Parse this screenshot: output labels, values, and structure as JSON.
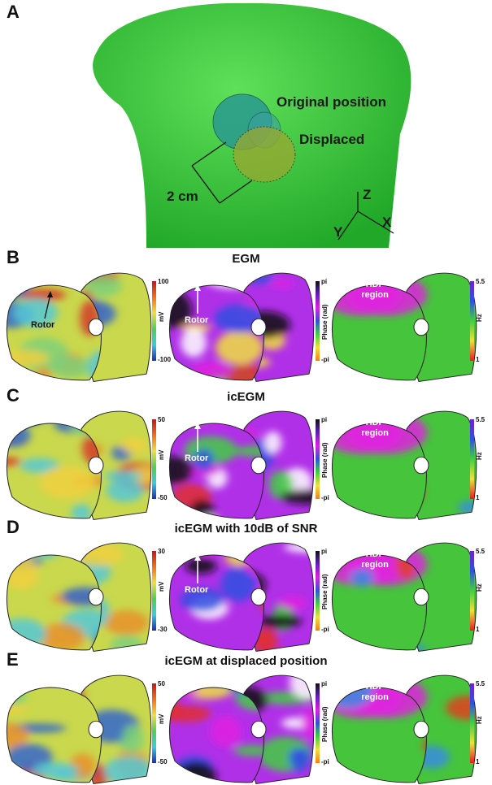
{
  "panel_a": {
    "label": "A",
    "annotations": {
      "original": "Original position",
      "displaced": "Displaced",
      "distance": "2 cm"
    },
    "axes": {
      "z": "Z",
      "x": "X",
      "y": "Y"
    }
  },
  "rows": [
    {
      "label": "B",
      "title": "EGM",
      "voltage_bar": {
        "unit": "mV",
        "max": "100",
        "min": "-100"
      },
      "phase_bar": {
        "unit": "Phase (rad)",
        "max": "pi",
        "min": "-pi"
      },
      "freq_bar": {
        "unit": "Hz",
        "max": "5.5",
        "min": "1"
      },
      "annotations": {
        "rotor_voltage": "Rotor",
        "rotor_phase": "Rotor",
        "hdf": "HDF region"
      }
    },
    {
      "label": "C",
      "title": "icEGM",
      "voltage_bar": {
        "unit": "mV",
        "max": "50",
        "min": "-50"
      },
      "phase_bar": {
        "unit": "Phase (rad)",
        "max": "pi",
        "min": "-pi"
      },
      "freq_bar": {
        "unit": "Hz",
        "max": "5.5",
        "min": "1"
      },
      "annotations": {
        "rotor_phase": "Rotor",
        "hdf": "HDF region"
      }
    },
    {
      "label": "D",
      "title": "icEGM with 10dB of SNR",
      "voltage_bar": {
        "unit": "mV",
        "max": "30",
        "min": "-30"
      },
      "phase_bar": {
        "unit": "Phase (rad)",
        "max": "pi",
        "min": "-pi"
      },
      "freq_bar": {
        "unit": "Hz",
        "max": "5.5",
        "min": "1"
      },
      "annotations": {
        "rotor_phase": "Rotor",
        "hdf": "HDF region"
      }
    },
    {
      "label": "E",
      "title": "icEGM at displaced position",
      "voltage_bar": {
        "unit": "mV",
        "max": "50",
        "min": "-50"
      },
      "phase_bar": {
        "unit": "Phase (rad)",
        "max": "pi",
        "min": "-pi"
      },
      "freq_bar": {
        "unit": "Hz",
        "max": "5.5",
        "min": "1"
      },
      "annotations": {
        "hdf": "HDF region"
      }
    }
  ]
}
